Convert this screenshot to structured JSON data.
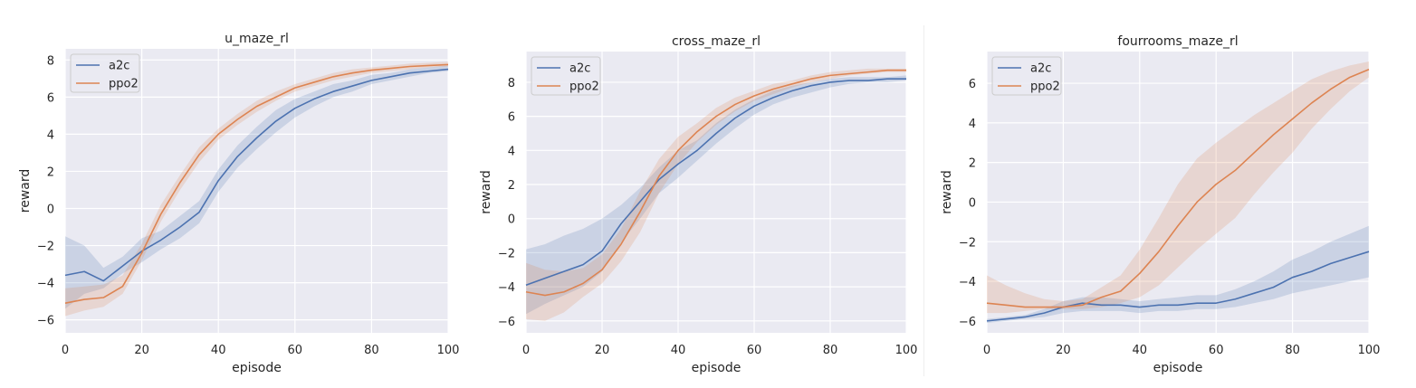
{
  "chart_data": [
    {
      "type": "line",
      "title": "u_maze_rl",
      "xlabel": "episode",
      "ylabel": "reward",
      "xlim": [
        0,
        100
      ],
      "ylim": [
        -6.7,
        8.6
      ],
      "xticks": [
        0,
        20,
        40,
        60,
        80,
        100
      ],
      "yticks": [
        -6,
        -4,
        -2,
        0,
        2,
        4,
        6,
        8
      ],
      "grid": true,
      "legend_position": "top-left",
      "x": [
        0,
        5,
        10,
        15,
        20,
        25,
        30,
        35,
        40,
        45,
        50,
        55,
        60,
        65,
        70,
        75,
        80,
        85,
        90,
        95,
        100
      ],
      "series": [
        {
          "name": "a2c",
          "color": "#4c72b0",
          "values": [
            -3.6,
            -3.4,
            -3.9,
            -3.1,
            -2.3,
            -1.7,
            -1.0,
            -0.2,
            1.5,
            2.8,
            3.8,
            4.7,
            5.4,
            5.9,
            6.3,
            6.6,
            6.9,
            7.1,
            7.3,
            7.4,
            7.5
          ],
          "lower": [
            -5.4,
            -4.6,
            -4.3,
            -3.5,
            -2.9,
            -2.2,
            -1.6,
            -0.8,
            0.9,
            2.2,
            3.2,
            4.1,
            4.9,
            5.5,
            6.0,
            6.3,
            6.7,
            6.9,
            7.1,
            7.3,
            7.4
          ],
          "upper": [
            -1.5,
            -2.0,
            -3.2,
            -2.6,
            -1.6,
            -1.2,
            -0.4,
            0.4,
            2.1,
            3.4,
            4.4,
            5.3,
            5.9,
            6.3,
            6.7,
            6.9,
            7.2,
            7.3,
            7.5,
            7.6,
            7.7
          ]
        },
        {
          "name": "ppo2",
          "color": "#dd8452",
          "values": [
            -5.1,
            -4.9,
            -4.8,
            -4.2,
            -2.4,
            -0.3,
            1.4,
            2.9,
            4.0,
            4.8,
            5.5,
            6.0,
            6.5,
            6.8,
            7.1,
            7.3,
            7.45,
            7.55,
            7.65,
            7.7,
            7.75
          ],
          "lower": [
            -5.8,
            -5.5,
            -5.3,
            -4.6,
            -2.8,
            -0.7,
            1.0,
            2.5,
            3.7,
            4.5,
            5.2,
            5.8,
            6.3,
            6.6,
            6.9,
            7.1,
            7.3,
            7.4,
            7.5,
            7.6,
            7.65
          ],
          "upper": [
            -4.3,
            -4.2,
            -4.1,
            -3.6,
            -1.9,
            0.2,
            1.8,
            3.3,
            4.3,
            5.1,
            5.8,
            6.3,
            6.7,
            7.0,
            7.3,
            7.5,
            7.6,
            7.7,
            7.8,
            7.85,
            7.9
          ]
        }
      ]
    },
    {
      "type": "line",
      "title": "cross_maze_rl",
      "xlabel": "episode",
      "ylabel": "reward",
      "xlim": [
        0,
        100
      ],
      "ylim": [
        -6.7,
        9.8
      ],
      "xticks": [
        0,
        20,
        40,
        60,
        80,
        100
      ],
      "yticks": [
        -6,
        -4,
        -2,
        0,
        2,
        4,
        6,
        8
      ],
      "grid": true,
      "legend_position": "top-left",
      "x": [
        0,
        5,
        10,
        15,
        20,
        25,
        30,
        35,
        40,
        45,
        50,
        55,
        60,
        65,
        70,
        75,
        80,
        85,
        90,
        95,
        100
      ],
      "series": [
        {
          "name": "a2c",
          "color": "#4c72b0",
          "values": [
            -3.9,
            -3.5,
            -3.1,
            -2.7,
            -1.9,
            -0.3,
            1.0,
            2.3,
            3.2,
            4.0,
            5.0,
            5.9,
            6.6,
            7.1,
            7.5,
            7.8,
            8.0,
            8.1,
            8.1,
            8.2,
            8.2
          ],
          "lower": [
            -5.6,
            -5.0,
            -4.5,
            -4.0,
            -3.1,
            -1.4,
            0.0,
            1.5,
            2.4,
            3.4,
            4.4,
            5.3,
            6.1,
            6.7,
            7.1,
            7.4,
            7.7,
            7.9,
            8.0,
            8.0,
            8.1
          ],
          "upper": [
            -1.8,
            -1.5,
            -1.0,
            -0.6,
            0.0,
            0.8,
            1.8,
            3.0,
            4.0,
            4.6,
            5.6,
            6.4,
            7.0,
            7.5,
            7.8,
            8.0,
            8.2,
            8.3,
            8.3,
            8.3,
            8.4
          ]
        },
        {
          "name": "ppo2",
          "color": "#dd8452",
          "values": [
            -4.3,
            -4.5,
            -4.3,
            -3.8,
            -3.0,
            -1.5,
            0.4,
            2.5,
            4.0,
            5.1,
            6.0,
            6.7,
            7.2,
            7.6,
            7.9,
            8.2,
            8.4,
            8.5,
            8.6,
            8.7,
            8.7
          ],
          "lower": [
            -5.9,
            -6.0,
            -5.5,
            -4.6,
            -3.8,
            -2.5,
            -0.8,
            1.5,
            3.2,
            4.5,
            5.5,
            6.3,
            6.9,
            7.3,
            7.7,
            8.0,
            8.2,
            8.4,
            8.5,
            8.6,
            8.6
          ],
          "upper": [
            -2.6,
            -3.0,
            -3.1,
            -2.9,
            -2.1,
            -0.6,
            1.6,
            3.5,
            4.8,
            5.6,
            6.5,
            7.1,
            7.5,
            7.9,
            8.1,
            8.4,
            8.6,
            8.7,
            8.8,
            8.8,
            8.8
          ]
        }
      ]
    },
    {
      "type": "line",
      "title": "fourrooms_maze_rl",
      "xlabel": "episode",
      "ylabel": "reward",
      "xlim": [
        0,
        100
      ],
      "ylim": [
        -6.6,
        7.6
      ],
      "xticks": [
        0,
        20,
        40,
        60,
        80,
        100
      ],
      "yticks": [
        -6,
        -4,
        -2,
        0,
        2,
        4,
        6
      ],
      "grid": true,
      "legend_position": "top-left",
      "x": [
        0,
        5,
        10,
        15,
        20,
        25,
        30,
        35,
        40,
        45,
        50,
        55,
        60,
        65,
        70,
        75,
        80,
        85,
        90,
        95,
        100
      ],
      "series": [
        {
          "name": "a2c",
          "color": "#4c72b0",
          "values": [
            -6.0,
            -5.9,
            -5.8,
            -5.6,
            -5.3,
            -5.1,
            -5.2,
            -5.2,
            -5.3,
            -5.2,
            -5.2,
            -5.1,
            -5.1,
            -4.9,
            -4.6,
            -4.3,
            -3.8,
            -3.5,
            -3.1,
            -2.8,
            -2.5
          ],
          "lower": [
            -6.1,
            -6.0,
            -5.9,
            -5.8,
            -5.6,
            -5.5,
            -5.5,
            -5.5,
            -5.6,
            -5.5,
            -5.5,
            -5.4,
            -5.4,
            -5.3,
            -5.1,
            -4.9,
            -4.6,
            -4.4,
            -4.2,
            -4.0,
            -3.8
          ],
          "upper": [
            -5.9,
            -5.8,
            -5.7,
            -5.4,
            -5.0,
            -4.8,
            -4.8,
            -4.9,
            -5.0,
            -4.9,
            -4.8,
            -4.7,
            -4.7,
            -4.4,
            -4.0,
            -3.5,
            -2.9,
            -2.5,
            -2.0,
            -1.6,
            -1.2
          ]
        },
        {
          "name": "ppo2",
          "color": "#dd8452",
          "values": [
            -5.1,
            -5.2,
            -5.3,
            -5.3,
            -5.3,
            -5.2,
            -4.8,
            -4.5,
            -3.6,
            -2.5,
            -1.2,
            0.0,
            0.9,
            1.6,
            2.5,
            3.4,
            4.2,
            5.0,
            5.7,
            6.3,
            6.7
          ],
          "lower": [
            -5.6,
            -5.6,
            -5.5,
            -5.4,
            -5.4,
            -5.4,
            -5.3,
            -5.1,
            -4.8,
            -4.2,
            -3.3,
            -2.4,
            -1.6,
            -0.8,
            0.4,
            1.5,
            2.5,
            3.7,
            4.7,
            5.6,
            6.3
          ],
          "upper": [
            -3.7,
            -4.2,
            -4.6,
            -4.9,
            -5.0,
            -4.9,
            -4.3,
            -3.7,
            -2.4,
            -0.8,
            0.9,
            2.2,
            3.0,
            3.7,
            4.4,
            5.0,
            5.6,
            6.2,
            6.6,
            6.9,
            7.1
          ]
        }
      ]
    }
  ]
}
